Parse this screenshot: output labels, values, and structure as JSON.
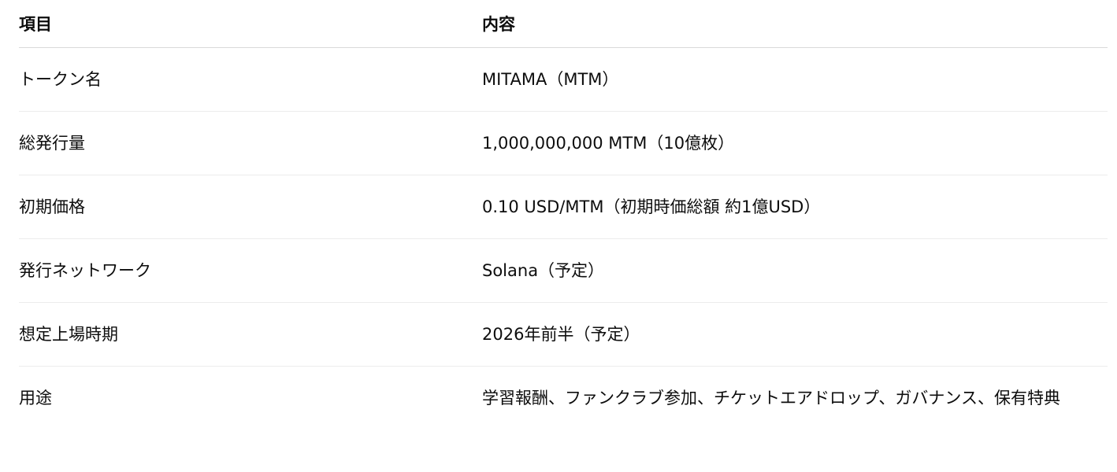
{
  "table": {
    "headers": [
      "項目",
      "内容"
    ],
    "rows": [
      {
        "item": "トークン名",
        "content": "MITAMA（MTM）"
      },
      {
        "item": "総発行量",
        "content": "1,000,000,000 MTM（10億枚）"
      },
      {
        "item": "初期価格",
        "content": "0.10 USD/MTM（初期時価総額 約1億USD）"
      },
      {
        "item": "発行ネットワーク",
        "content": "Solana（予定）"
      },
      {
        "item": "想定上場時期",
        "content": "2026年前半（予定）"
      },
      {
        "item": "用途",
        "content": "学習報酬、ファンクラブ参加、チケットエアドロップ、ガバナンス、保有特典"
      }
    ]
  }
}
